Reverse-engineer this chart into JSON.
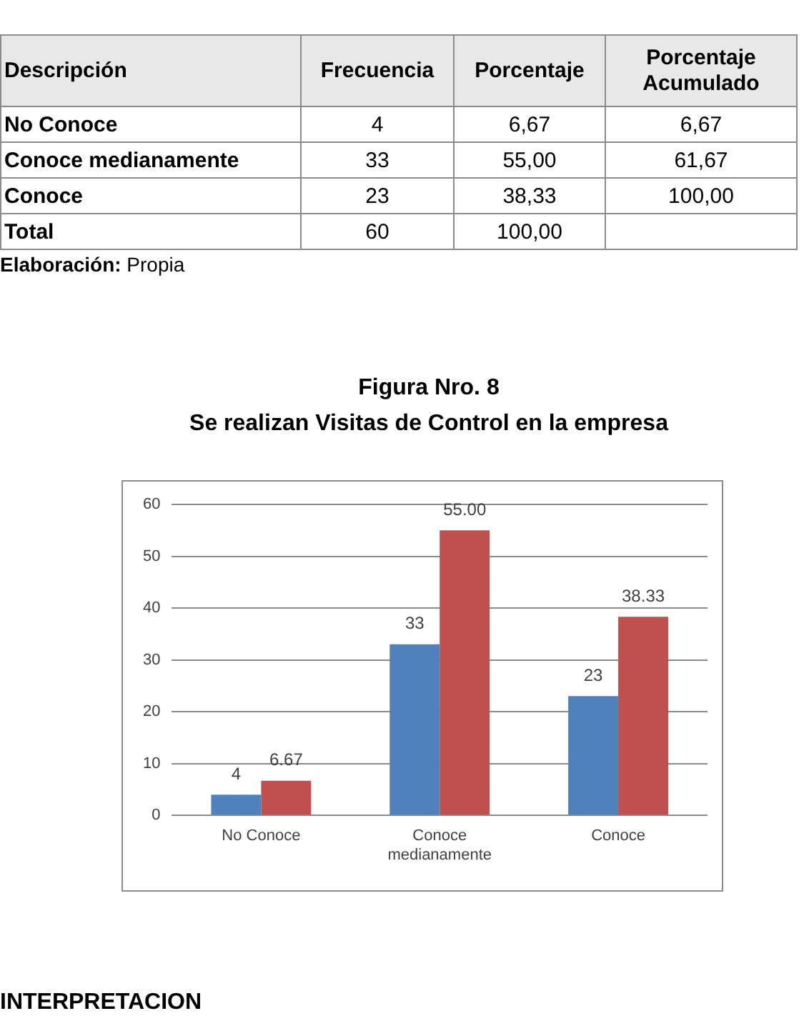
{
  "chart_data": [
    {
      "type": "other",
      "ylabel": "Descripción",
      "categories": [
        "Frecuencia",
        "Porcentaje",
        "Porcentaje Acumulado"
      ],
      "y_categories": [
        "No Conoce",
        "Conoce medianamente",
        "Conoce",
        "Total"
      ],
      "cell_labels": [
        [
          "4",
          "6,67",
          "6,67"
        ],
        [
          "33",
          "55,00",
          "61,67"
        ],
        [
          "23",
          "38,33",
          "100,00"
        ],
        [
          "60",
          "100,00",
          null
        ]
      ],
      "annotations": [
        "Elaboración: Propia"
      ]
    },
    {
      "type": "bar",
      "title": "Figura Nro. 8",
      "subtitle": "Se realizan Visitas de Control en la empresa",
      "categories": [
        "No Conoce",
        "Conoce medianamente",
        "Conoce"
      ],
      "series": [
        {
          "color": "#4f81bd",
          "values": [
            4,
            33,
            23
          ],
          "value_labels": [
            "4",
            "33",
            "23"
          ]
        },
        {
          "color": "#c0504d",
          "values": [
            6.67,
            55.0,
            38.33
          ],
          "value_labels": [
            "6.67",
            "55.00",
            "38.33"
          ]
        }
      ],
      "ylim": [
        0,
        60
      ],
      "yticks": [
        0,
        10,
        20,
        30,
        40,
        50,
        60
      ],
      "grid": "y",
      "annotations": [
        "INTERPRETACION"
      ]
    }
  ]
}
